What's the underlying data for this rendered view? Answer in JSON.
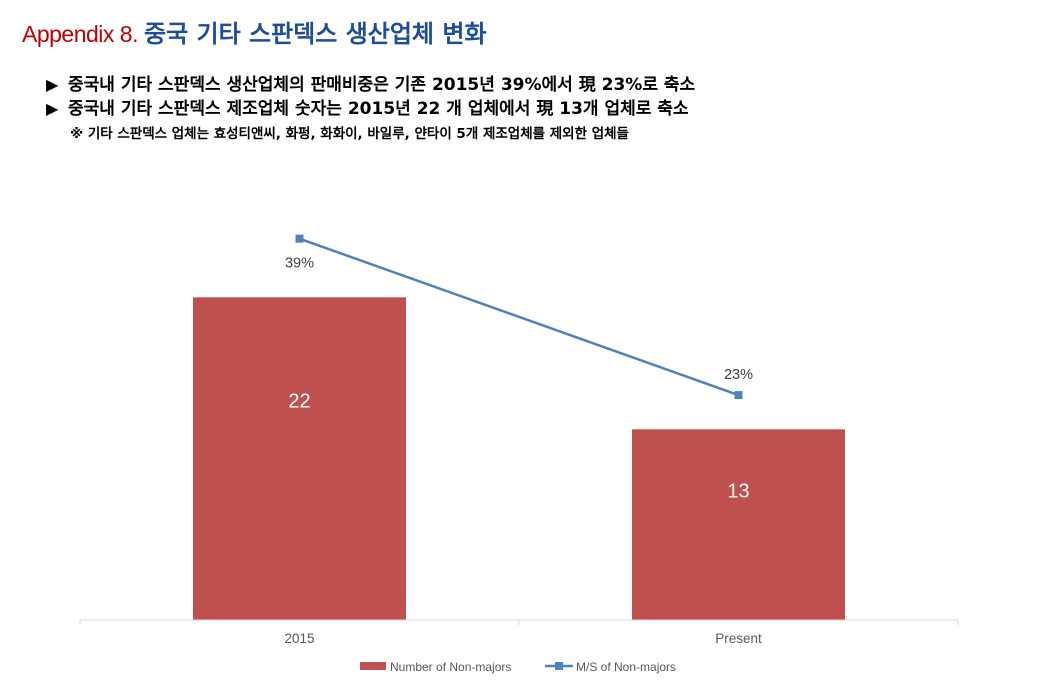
{
  "header": {
    "prefix": "Appendix 8.",
    "title": "중국 기타 스판덱스 생산업체 변화"
  },
  "bullets": [
    {
      "marker": "▶",
      "text": "중국내 기타 스판덱스 생산업체의 판매비중은 기존 2015년 39%에서 現 23%로 축소"
    },
    {
      "marker": "▶",
      "text": "중국내 기타 스판덱스 제조업체 숫자는 2015년 22 개 업체에서 現 13개 업체로 축소"
    }
  ],
  "note": "※ 기타 스판덱스 업체는 효성티앤씨, 화펑, 화화이, 바일루, 얀타이 5개 제조업체를 제외한 업체들",
  "chart_data": {
    "type": "bar",
    "categories": [
      "2015",
      "Present"
    ],
    "series": [
      {
        "name": "Number of Non-majors",
        "type": "bar",
        "values": [
          22,
          13
        ],
        "labels": [
          "22",
          "13"
        ],
        "color": "#c0504d",
        "axis": "primary",
        "ylim": [
          0,
          30
        ]
      },
      {
        "name": "M/S of Non-majors",
        "type": "line",
        "values": [
          0.39,
          0.23
        ],
        "labels": [
          "39%",
          "23%"
        ],
        "color": "#4f81bd",
        "axis": "secondary",
        "ylim": [
          0.0,
          0.45
        ]
      }
    ],
    "legend": "bottom",
    "grid": false,
    "xlabel": "",
    "ylabel": ""
  }
}
